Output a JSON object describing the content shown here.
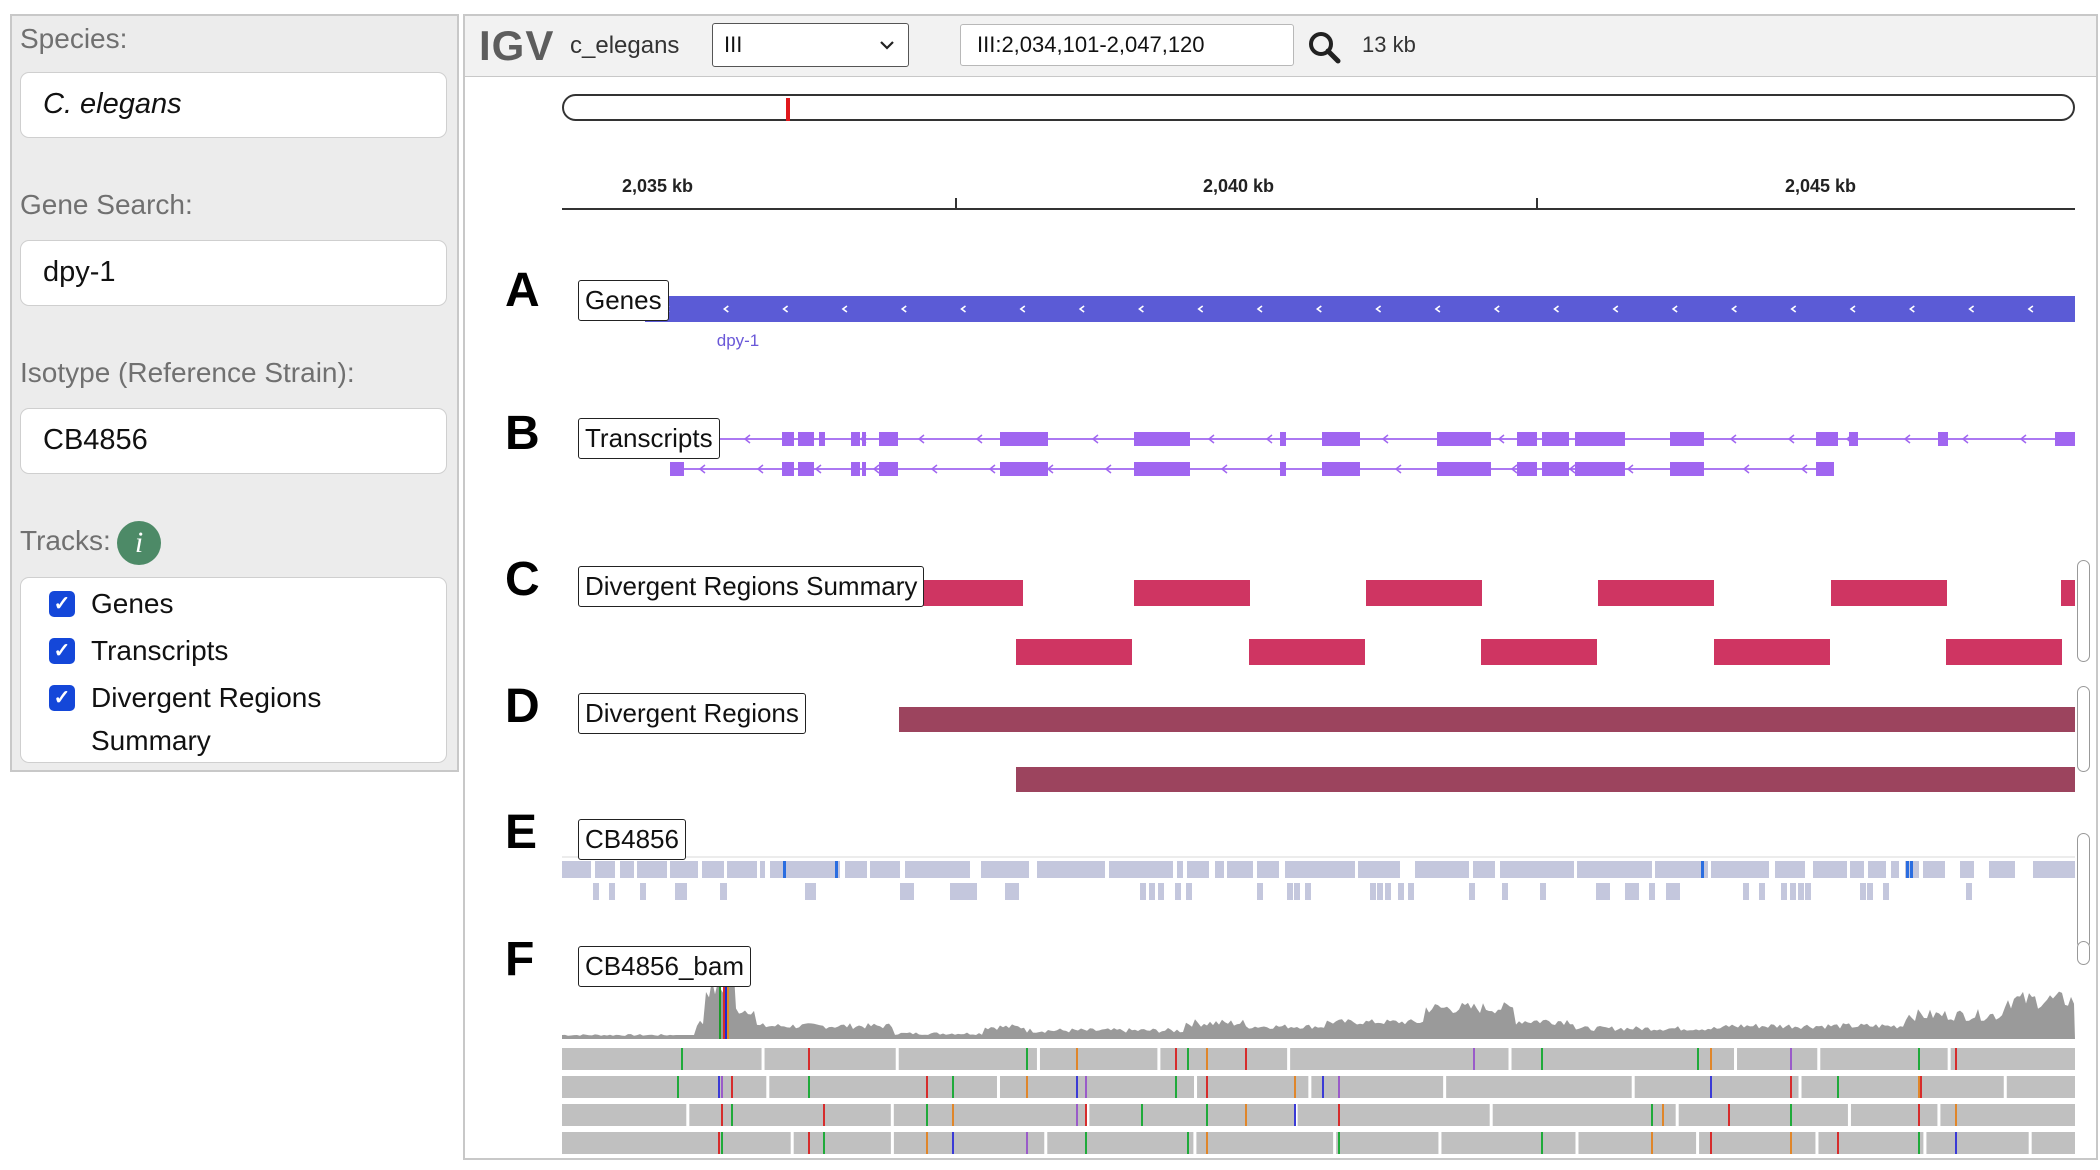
{
  "left_panel": {
    "species_label": "Species:",
    "species_value": "C. elegans",
    "gene_search_label": "Gene Search:",
    "gene_search_value": "dpy-1",
    "isotype_label": "Isotype (Reference Strain):",
    "isotype_value": "CB4856",
    "tracks_label": "Tracks:",
    "info_icon_glyph": "i",
    "info_icon_color": "#4d8a67",
    "checkbox_color": "#1447d9",
    "tracks": [
      {
        "label": "Genes",
        "checked": true
      },
      {
        "label": "Transcripts",
        "checked": true
      },
      {
        "label": "Divergent Regions",
        "label_line2": "Summary",
        "checked": true
      }
    ]
  },
  "igv": {
    "logo": "IGV",
    "genome": "c_elegans",
    "chromosome": "III",
    "locus": "III:2,034,101-2,047,120",
    "window_size": "13 kb",
    "ruler_labels": [
      "2,035 kb",
      "2,040 kb",
      "2,045 kb"
    ],
    "tracks": [
      {
        "letter": "A",
        "name": "Genes"
      },
      {
        "letter": "B",
        "name": "Transcripts"
      },
      {
        "letter": "C",
        "name": "Divergent Regions Summary"
      },
      {
        "letter": "D",
        "name": "Divergent Regions"
      },
      {
        "letter": "E",
        "name": "CB4856"
      },
      {
        "letter": "F",
        "name": "CB4856_bam"
      }
    ],
    "gene_feature_label": "dpy-1",
    "colors": {
      "gene": "#5b5bd6",
      "gene_label": "#6a58d8",
      "transcript": "#a066f0",
      "divergent_summary": "#cf3562",
      "divergent": "#9c445e",
      "variant": "#c4c7dd",
      "variant_highlight": "#2a6de0",
      "coverage": "#9a9a9a",
      "read": "#c0c0c0",
      "ideogram_marker": "#e0181c"
    }
  }
}
